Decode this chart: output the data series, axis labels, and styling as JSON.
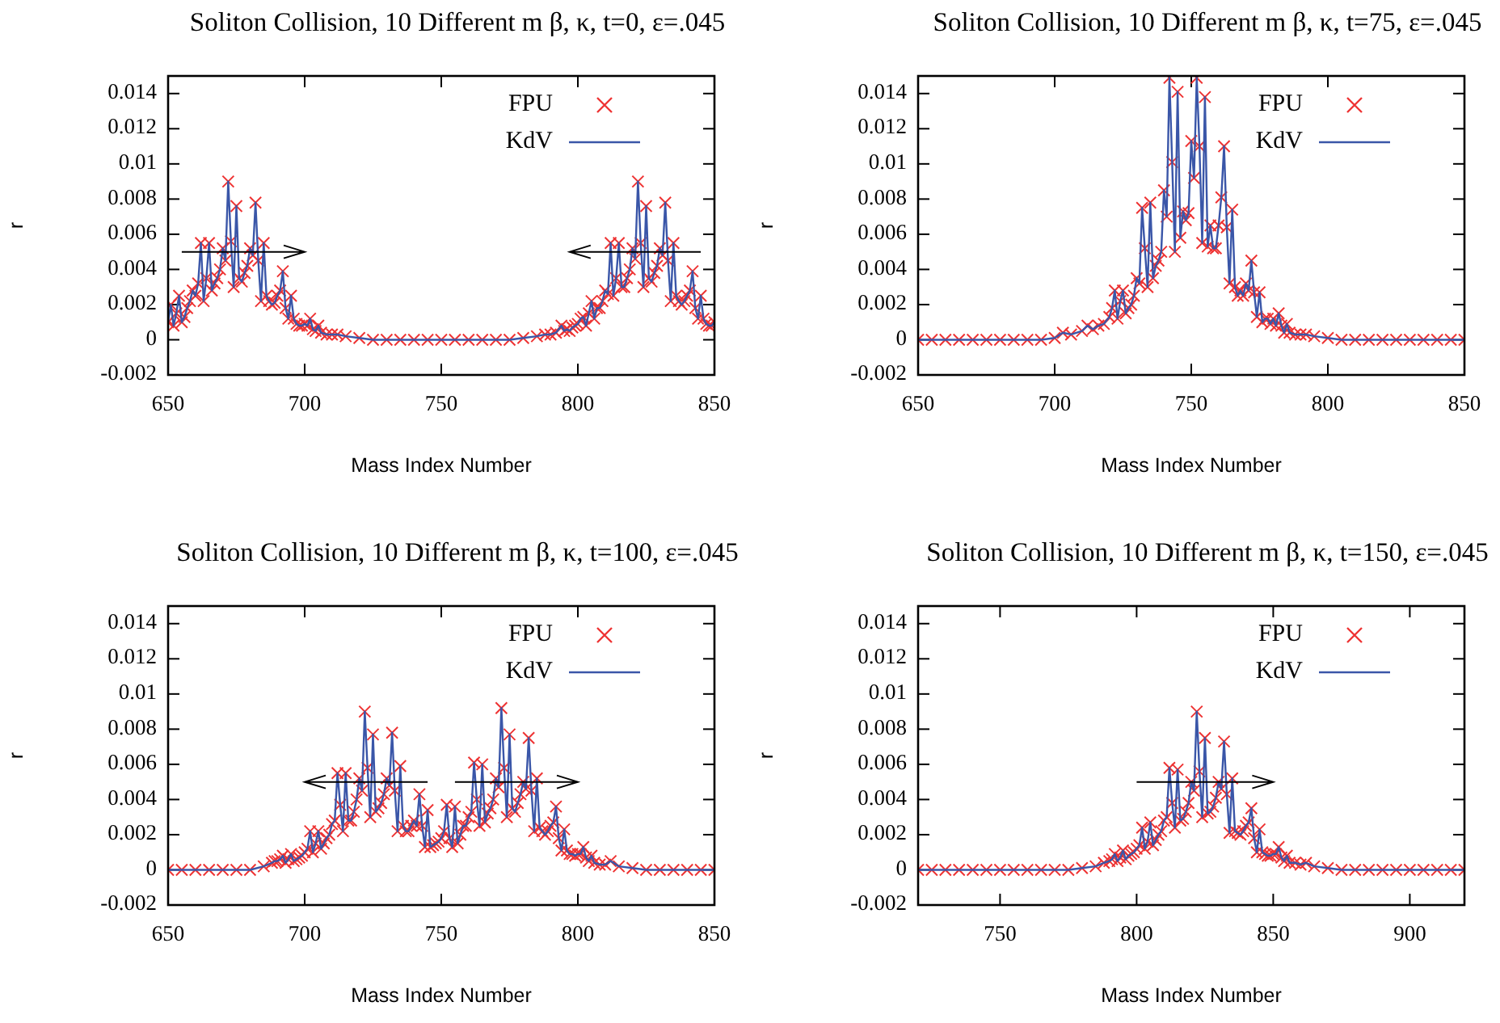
{
  "chart_data": [
    {
      "type": "line",
      "title": "Soliton Collision, 10 Different m β, κ, t=0, ε=.045",
      "xlabel": "Mass Index Number",
      "ylabel": "r",
      "xlim": [
        650,
        850
      ],
      "xticks": [
        650,
        700,
        750,
        800,
        850
      ],
      "ylim": [
        -0.002,
        0.015
      ],
      "yticks": [
        -0.002,
        0,
        0.002,
        0.004,
        0.006,
        0.008,
        0.01,
        0.012,
        0.014
      ],
      "grid": false,
      "legend": "top right",
      "x": [
        650,
        651,
        652,
        653,
        654,
        655,
        656,
        657,
        658,
        659,
        660,
        661,
        662,
        663,
        664,
        665,
        666,
        667,
        668,
        669,
        670,
        671,
        672,
        673,
        674,
        675,
        676,
        677,
        678,
        679,
        680,
        681,
        682,
        683,
        684,
        685,
        686,
        687,
        688,
        689,
        690,
        691,
        692,
        693,
        694,
        695,
        696,
        697,
        698,
        699,
        700,
        701,
        702,
        703,
        704,
        705,
        706,
        708,
        710,
        712,
        715,
        720,
        725,
        730,
        735,
        740,
        745,
        750,
        755,
        760,
        765,
        770,
        775,
        780,
        785,
        788,
        790,
        792,
        794,
        795,
        796,
        797,
        798,
        799,
        800,
        801,
        802,
        803,
        804,
        805,
        806,
        807,
        808,
        809,
        810,
        811,
        812,
        813,
        814,
        815,
        816,
        817,
        818,
        819,
        820,
        821,
        822,
        823,
        824,
        825,
        826,
        827,
        828,
        829,
        830,
        831,
        832,
        833,
        834,
        835,
        836,
        837,
        838,
        839,
        840,
        841,
        842,
        843,
        844,
        845,
        846,
        847,
        848,
        849,
        850
      ],
      "series": [
        {
          "name": "FPU",
          "type": "scatter",
          "marker": "cross",
          "color": "#ee3333",
          "values": [
            0.001,
            0.002,
            0.0008,
            0.0015,
            0.0025,
            0.001,
            0.0013,
            0.0018,
            0.0022,
            0.0028,
            0.0025,
            0.0032,
            0.0055,
            0.0022,
            0.0035,
            0.0055,
            0.0028,
            0.0032,
            0.0035,
            0.004,
            0.0052,
            0.0045,
            0.009,
            0.0056,
            0.003,
            0.0076,
            0.0035,
            0.0033,
            0.0038,
            0.0042,
            0.0052,
            0.0048,
            0.0078,
            0.0045,
            0.0022,
            0.0055,
            0.0025,
            0.0022,
            0.002,
            0.0021,
            0.0025,
            0.0028,
            0.0039,
            0.0018,
            0.0012,
            0.0025,
            0.0012,
            0.0009,
            0.0008,
            0.0008,
            0.0009,
            0.0008,
            0.0012,
            0.0006,
            0.0005,
            0.0008,
            0.0004,
            0.0003,
            0.0003,
            0.0003,
            0.0002,
            0.0001,
            0,
            0,
            0,
            0,
            0,
            0,
            0,
            0,
            0,
            0,
            0,
            0.0001,
            0.0002,
            0.0003,
            0.0003,
            0.0004,
            0.0008,
            0.0005,
            0.0006,
            0.0005,
            0.0007,
            0.0008,
            0.0009,
            0.0012,
            0.0013,
            0.0008,
            0.0015,
            0.0022,
            0.0012,
            0.0018,
            0.0018,
            0.0022,
            0.0028,
            0.0026,
            0.0055,
            0.0025,
            0.0035,
            0.0055,
            0.003,
            0.003,
            0.0035,
            0.004,
            0.0052,
            0.0046,
            0.009,
            0.0055,
            0.003,
            0.0076,
            0.0035,
            0.0033,
            0.0038,
            0.0042,
            0.0052,
            0.0048,
            0.0078,
            0.0045,
            0.0022,
            0.0055,
            0.0025,
            0.0022,
            0.002,
            0.0022,
            0.0025,
            0.0028,
            0.0039,
            0.0018,
            0.0012,
            0.0025,
            0.0012,
            0.0009,
            0.0008,
            0.0008,
            0.001
          ]
        },
        {
          "name": "KdV",
          "type": "line",
          "line_style": "solid",
          "color": "#3a56a8",
          "values": [
            0.001,
            0.002,
            0.0008,
            0.0015,
            0.0025,
            0.001,
            0.0013,
            0.0018,
            0.0022,
            0.0028,
            0.0025,
            0.0032,
            0.0055,
            0.0022,
            0.0035,
            0.0055,
            0.0028,
            0.0032,
            0.0035,
            0.004,
            0.0052,
            0.0045,
            0.009,
            0.0056,
            0.003,
            0.0076,
            0.0035,
            0.0033,
            0.0038,
            0.0042,
            0.0052,
            0.0048,
            0.0078,
            0.0045,
            0.0022,
            0.0055,
            0.0025,
            0.0022,
            0.002,
            0.0021,
            0.0025,
            0.0028,
            0.0039,
            0.0018,
            0.0012,
            0.0025,
            0.0012,
            0.0009,
            0.0008,
            0.0008,
            0.0009,
            0.0008,
            0.0012,
            0.0006,
            0.0005,
            0.0008,
            0.0004,
            0.0003,
            0.0003,
            0.0003,
            0.0002,
            0.0001,
            0,
            0,
            0,
            0,
            0,
            0,
            0,
            0,
            0,
            0,
            0,
            0.0001,
            0.0002,
            0.0003,
            0.0003,
            0.0004,
            0.0008,
            0.0005,
            0.0006,
            0.0005,
            0.0007,
            0.0008,
            0.0009,
            0.0012,
            0.0013,
            0.0008,
            0.0015,
            0.0022,
            0.0012,
            0.0018,
            0.0018,
            0.0022,
            0.0028,
            0.0026,
            0.0055,
            0.0025,
            0.0035,
            0.0055,
            0.003,
            0.003,
            0.0035,
            0.004,
            0.0052,
            0.0046,
            0.009,
            0.0055,
            0.003,
            0.0076,
            0.0035,
            0.0033,
            0.0038,
            0.0042,
            0.0052,
            0.0048,
            0.0078,
            0.0045,
            0.0022,
            0.0055,
            0.0025,
            0.0022,
            0.002,
            0.0022,
            0.0025,
            0.0028,
            0.0039,
            0.0018,
            0.0012,
            0.0025,
            0.0012,
            0.0009,
            0.0008,
            0.0008,
            0.001
          ]
        }
      ]
    },
    {
      "type": "line",
      "title": "Soliton Collision, 10 Different m β, κ, t=75, ε=.045",
      "xlabel": "Mass Index Number",
      "ylabel": "r",
      "xlim": [
        650,
        850
      ],
      "xticks": [
        650,
        700,
        750,
        800,
        850
      ],
      "ylim": [
        -0.002,
        0.015
      ],
      "yticks": [
        -0.002,
        0,
        0.002,
        0.004,
        0.006,
        0.008,
        0.01,
        0.012,
        0.014
      ],
      "grid": false,
      "legend": "top right",
      "x": [
        650,
        655,
        660,
        665,
        670,
        675,
        680,
        685,
        690,
        695,
        700,
        703,
        706,
        710,
        712,
        714,
        716,
        718,
        720,
        721,
        722,
        723,
        724,
        725,
        726,
        727,
        728,
        729,
        730,
        731,
        732,
        733,
        734,
        735,
        736,
        737,
        738,
        739,
        740,
        741,
        742,
        743,
        744,
        745,
        746,
        747,
        748,
        749,
        750,
        751,
        752,
        753,
        754,
        755,
        756,
        757,
        758,
        759,
        760,
        761,
        762,
        763,
        764,
        765,
        766,
        767,
        768,
        769,
        770,
        771,
        772,
        773,
        774,
        775,
        776,
        777,
        778,
        779,
        780,
        781,
        782,
        783,
        784,
        785,
        786,
        788,
        790,
        792,
        795,
        800,
        805,
        810,
        815,
        820,
        825,
        830,
        835,
        840,
        845,
        850
      ],
      "series": [
        {
          "name": "FPU",
          "type": "scatter",
          "marker": "cross",
          "color": "#ee3333",
          "values": [
            0,
            0,
            0,
            0,
            0,
            0,
            0,
            0,
            0,
            0,
            0.0001,
            0.0004,
            0.0003,
            0.0005,
            0.0008,
            0.0006,
            0.0008,
            0.0009,
            0.0013,
            0.0018,
            0.0028,
            0.0012,
            0.0022,
            0.0028,
            0.0015,
            0.0018,
            0.002,
            0.0025,
            0.0035,
            0.0032,
            0.0075,
            0.0052,
            0.003,
            0.0078,
            0.0035,
            0.0042,
            0.0045,
            0.005,
            0.0085,
            0.007,
            0.0149,
            0.0101,
            0.005,
            0.0141,
            0.0058,
            0.0073,
            0.0068,
            0.0072,
            0.0113,
            0.0092,
            0.0149,
            0.011,
            0.0055,
            0.0138,
            0.0053,
            0.0065,
            0.0052,
            0.0052,
            0.0065,
            0.0081,
            0.011,
            0.0064,
            0.0032,
            0.0074,
            0.003,
            0.0025,
            0.0028,
            0.0025,
            0.0032,
            0.0028,
            0.0045,
            0.0027,
            0.0013,
            0.0027,
            0.001,
            0.0012,
            0.0012,
            0.0009,
            0.0012,
            0.0008,
            0.0015,
            0.0008,
            0.0004,
            0.0009,
            0.0004,
            0.0003,
            0.0003,
            0.0003,
            0.0002,
            0.0001,
            0,
            0,
            0,
            0,
            0,
            0,
            0,
            0,
            0,
            0
          ]
        },
        {
          "name": "KdV",
          "type": "line",
          "line_style": "solid",
          "color": "#3a56a8",
          "values": [
            0,
            0,
            0,
            0,
            0,
            0,
            0,
            0,
            0,
            0,
            0.0001,
            0.0004,
            0.0003,
            0.0005,
            0.0008,
            0.0006,
            0.0008,
            0.0009,
            0.0013,
            0.0018,
            0.0028,
            0.0012,
            0.0022,
            0.0028,
            0.0015,
            0.0018,
            0.002,
            0.0025,
            0.0035,
            0.0032,
            0.0075,
            0.0052,
            0.003,
            0.0078,
            0.0035,
            0.0042,
            0.0045,
            0.005,
            0.0085,
            0.007,
            0.0149,
            0.0101,
            0.005,
            0.0141,
            0.0058,
            0.0073,
            0.0068,
            0.0072,
            0.0113,
            0.0092,
            0.0149,
            0.011,
            0.0055,
            0.0138,
            0.0053,
            0.0065,
            0.0052,
            0.0052,
            0.0065,
            0.0081,
            0.011,
            0.0064,
            0.0032,
            0.0074,
            0.003,
            0.0025,
            0.0028,
            0.0025,
            0.0032,
            0.0028,
            0.0045,
            0.0027,
            0.0013,
            0.0027,
            0.001,
            0.0012,
            0.0012,
            0.0009,
            0.0012,
            0.0008,
            0.0015,
            0.0008,
            0.0004,
            0.0009,
            0.0004,
            0.0003,
            0.0003,
            0.0003,
            0.0002,
            0.0001,
            0,
            0,
            0,
            0,
            0,
            0,
            0,
            0,
            0,
            0
          ]
        }
      ]
    },
    {
      "type": "line",
      "title": "Soliton Collision, 10 Different m β, κ, t=100, ε=.045",
      "xlabel": "Mass Index Number",
      "ylabel": "r",
      "xlim": [
        650,
        850
      ],
      "xticks": [
        650,
        700,
        750,
        800,
        850
      ],
      "ylim": [
        -0.002,
        0.015
      ],
      "yticks": [
        -0.002,
        0,
        0.002,
        0.004,
        0.006,
        0.008,
        0.01,
        0.012,
        0.014
      ],
      "grid": false,
      "legend": "top right",
      "x": [
        650,
        655,
        660,
        665,
        670,
        675,
        680,
        685,
        688,
        689,
        690,
        691,
        692,
        693,
        694,
        695,
        696,
        697,
        698,
        699,
        700,
        701,
        702,
        703,
        704,
        705,
        706,
        707,
        708,
        709,
        710,
        711,
        712,
        713,
        714,
        715,
        716,
        717,
        718,
        719,
        720,
        721,
        722,
        723,
        724,
        725,
        726,
        727,
        728,
        729,
        730,
        731,
        732,
        733,
        734,
        735,
        736,
        737,
        738,
        739,
        740,
        741,
        742,
        743,
        744,
        745,
        746,
        747,
        748,
        749,
        750,
        751,
        752,
        753,
        754,
        755,
        756,
        757,
        758,
        759,
        760,
        761,
        762,
        763,
        764,
        765,
        766,
        767,
        768,
        769,
        770,
        771,
        772,
        773,
        774,
        775,
        776,
        777,
        778,
        779,
        780,
        781,
        782,
        783,
        784,
        785,
        786,
        787,
        788,
        789,
        790,
        791,
        792,
        793,
        794,
        795,
        796,
        797,
        798,
        799,
        800,
        801,
        802,
        803,
        804,
        805,
        806,
        808,
        810,
        812,
        815,
        820,
        825,
        830,
        835,
        840,
        845,
        850
      ],
      "series": [
        {
          "name": "FPU",
          "type": "scatter",
          "marker": "cross",
          "color": "#ee3333",
          "values": [
            0,
            0,
            0,
            0,
            0,
            0,
            0,
            0.0002,
            0.0004,
            0.0005,
            0.0005,
            0.0006,
            0.0008,
            0.0004,
            0.0006,
            0.0009,
            0.0005,
            0.0006,
            0.0007,
            0.0008,
            0.001,
            0.0012,
            0.0022,
            0.001,
            0.0015,
            0.0022,
            0.0012,
            0.0015,
            0.0018,
            0.002,
            0.0026,
            0.0028,
            0.0055,
            0.0037,
            0.0022,
            0.0055,
            0.0028,
            0.0028,
            0.0033,
            0.004,
            0.0052,
            0.0045,
            0.009,
            0.0058,
            0.003,
            0.0077,
            0.0033,
            0.0035,
            0.0038,
            0.0043,
            0.0052,
            0.0048,
            0.0078,
            0.0045,
            0.0022,
            0.0059,
            0.0025,
            0.0022,
            0.0022,
            0.0025,
            0.0028,
            0.0025,
            0.0043,
            0.0025,
            0.0013,
            0.0034,
            0.0013,
            0.0014,
            0.0015,
            0.0016,
            0.0018,
            0.0022,
            0.0037,
            0.0018,
            0.0013,
            0.0036,
            0.0015,
            0.002,
            0.0025,
            0.0025,
            0.003,
            0.0033,
            0.0061,
            0.004,
            0.0025,
            0.006,
            0.0027,
            0.0032,
            0.0035,
            0.004,
            0.0052,
            0.0047,
            0.0092,
            0.0058,
            0.003,
            0.0077,
            0.0035,
            0.0033,
            0.0038,
            0.0043,
            0.005,
            0.0046,
            0.0075,
            0.0045,
            0.0022,
            0.0052,
            0.0024,
            0.0022,
            0.002,
            0.0022,
            0.0025,
            0.0027,
            0.0036,
            0.0018,
            0.0011,
            0.0023,
            0.0011,
            0.0009,
            0.0009,
            0.0008,
            0.0009,
            0.0009,
            0.0013,
            0.0007,
            0.0005,
            0.0008,
            0.0004,
            0.0003,
            0.0003,
            0.0005,
            0.0002,
            0.0001,
            0,
            0,
            0,
            0,
            0,
            0
          ]
        },
        {
          "name": "KdV",
          "type": "line",
          "line_style": "solid",
          "color": "#3a56a8",
          "values": [
            0,
            0,
            0,
            0,
            0,
            0,
            0,
            0.0002,
            0.0004,
            0.0005,
            0.0005,
            0.0006,
            0.0008,
            0.0004,
            0.0006,
            0.0009,
            0.0005,
            0.0006,
            0.0007,
            0.0008,
            0.001,
            0.0012,
            0.0022,
            0.001,
            0.0015,
            0.0022,
            0.0012,
            0.0015,
            0.0018,
            0.002,
            0.0026,
            0.0028,
            0.0055,
            0.0037,
            0.0022,
            0.0055,
            0.0028,
            0.0028,
            0.0033,
            0.004,
            0.0052,
            0.0045,
            0.009,
            0.0058,
            0.003,
            0.0077,
            0.0033,
            0.0035,
            0.0038,
            0.0043,
            0.0052,
            0.0048,
            0.0078,
            0.0045,
            0.0022,
            0.0059,
            0.0025,
            0.0022,
            0.0022,
            0.0025,
            0.0028,
            0.0025,
            0.0043,
            0.0025,
            0.0013,
            0.0034,
            0.0013,
            0.0014,
            0.0015,
            0.0016,
            0.0018,
            0.0022,
            0.0037,
            0.0018,
            0.0013,
            0.0036,
            0.0015,
            0.002,
            0.0025,
            0.0025,
            0.003,
            0.0033,
            0.0061,
            0.004,
            0.0025,
            0.006,
            0.0027,
            0.0032,
            0.0035,
            0.004,
            0.0052,
            0.0047,
            0.0092,
            0.0058,
            0.003,
            0.0077,
            0.0035,
            0.0033,
            0.0038,
            0.0043,
            0.005,
            0.0046,
            0.0075,
            0.0045,
            0.0022,
            0.0052,
            0.0024,
            0.0022,
            0.002,
            0.0022,
            0.0025,
            0.0027,
            0.0036,
            0.0018,
            0.0011,
            0.0023,
            0.0011,
            0.0009,
            0.0009,
            0.0008,
            0.0009,
            0.0009,
            0.0013,
            0.0007,
            0.0005,
            0.0008,
            0.0004,
            0.0003,
            0.0003,
            0.0005,
            0.0002,
            0.0001,
            0,
            0,
            0,
            0,
            0,
            0
          ]
        }
      ]
    },
    {
      "type": "line",
      "title": "Soliton Collision, 10 Different m β, κ, t=150, ε=.045",
      "xlabel": "Mass Index Number",
      "ylabel": "r",
      "xlim": [
        720,
        920
      ],
      "xticks": [
        750,
        800,
        850,
        900
      ],
      "ylim": [
        -0.002,
        0.015
      ],
      "yticks": [
        -0.002,
        0,
        0.002,
        0.004,
        0.006,
        0.008,
        0.01,
        0.012,
        0.014
      ],
      "grid": false,
      "legend": "top right",
      "x": [
        720,
        725,
        730,
        735,
        740,
        745,
        750,
        755,
        760,
        765,
        770,
        775,
        780,
        785,
        788,
        790,
        791,
        792,
        793,
        794,
        795,
        796,
        797,
        798,
        799,
        800,
        801,
        802,
        803,
        804,
        805,
        806,
        807,
        808,
        809,
        810,
        811,
        812,
        813,
        814,
        815,
        816,
        817,
        818,
        819,
        820,
        821,
        822,
        823,
        824,
        825,
        826,
        827,
        828,
        829,
        830,
        831,
        832,
        833,
        834,
        835,
        836,
        837,
        838,
        839,
        840,
        841,
        842,
        843,
        844,
        845,
        846,
        847,
        848,
        849,
        850,
        851,
        852,
        853,
        854,
        855,
        856,
        858,
        860,
        862,
        865,
        870,
        875,
        880,
        885,
        890,
        895,
        900,
        905,
        910,
        915,
        920
      ],
      "series": [
        {
          "name": "FPU",
          "type": "scatter",
          "marker": "cross",
          "color": "#ee3333",
          "values": [
            0,
            0,
            0,
            0,
            0,
            0,
            0,
            0,
            0,
            0,
            0,
            0,
            0.0001,
            0.0002,
            0.0004,
            0.0005,
            0.0006,
            0.0009,
            0.0005,
            0.0007,
            0.0011,
            0.0006,
            0.0008,
            0.0009,
            0.001,
            0.0012,
            0.0014,
            0.0024,
            0.0012,
            0.0016,
            0.0027,
            0.0014,
            0.0017,
            0.002,
            0.0022,
            0.0028,
            0.003,
            0.0058,
            0.0038,
            0.0024,
            0.0057,
            0.0028,
            0.0029,
            0.0033,
            0.0038,
            0.005,
            0.0045,
            0.009,
            0.0056,
            0.003,
            0.0075,
            0.0032,
            0.0033,
            0.0036,
            0.0041,
            0.005,
            0.0046,
            0.0073,
            0.0043,
            0.0021,
            0.0052,
            0.0022,
            0.0021,
            0.002,
            0.0022,
            0.0025,
            0.0027,
            0.0035,
            0.0018,
            0.001,
            0.0023,
            0.001,
            0.0009,
            0.0008,
            0.0008,
            0.0009,
            0.0009,
            0.0013,
            0.0007,
            0.0005,
            0.0008,
            0.0004,
            0.0004,
            0.0003,
            0.0004,
            0.0002,
            0.0001,
            0,
            0,
            0,
            0,
            0,
            0,
            0,
            0,
            0,
            0
          ]
        },
        {
          "name": "KdV",
          "type": "line",
          "line_style": "solid",
          "color": "#3a56a8",
          "values": [
            0,
            0,
            0,
            0,
            0,
            0,
            0,
            0,
            0,
            0,
            0,
            0,
            0.0001,
            0.0002,
            0.0004,
            0.0005,
            0.0006,
            0.0009,
            0.0005,
            0.0007,
            0.0011,
            0.0006,
            0.0008,
            0.0009,
            0.001,
            0.0012,
            0.0014,
            0.0024,
            0.0012,
            0.0016,
            0.0027,
            0.0014,
            0.0017,
            0.002,
            0.0022,
            0.0028,
            0.003,
            0.0058,
            0.0038,
            0.0024,
            0.0057,
            0.0028,
            0.0029,
            0.0033,
            0.0038,
            0.005,
            0.0045,
            0.009,
            0.0056,
            0.003,
            0.0075,
            0.0032,
            0.0033,
            0.0036,
            0.0041,
            0.005,
            0.0046,
            0.0073,
            0.0043,
            0.0021,
            0.0052,
            0.0022,
            0.0021,
            0.002,
            0.0022,
            0.0025,
            0.0027,
            0.0035,
            0.0018,
            0.001,
            0.0023,
            0.001,
            0.0009,
            0.0008,
            0.0008,
            0.0009,
            0.0009,
            0.0013,
            0.0007,
            0.0005,
            0.0008,
            0.0004,
            0.0004,
            0.0003,
            0.0004,
            0.0002,
            0.0001,
            0,
            0,
            0,
            0,
            0,
            0,
            0,
            0,
            0,
            0
          ]
        }
      ]
    }
  ]
}
